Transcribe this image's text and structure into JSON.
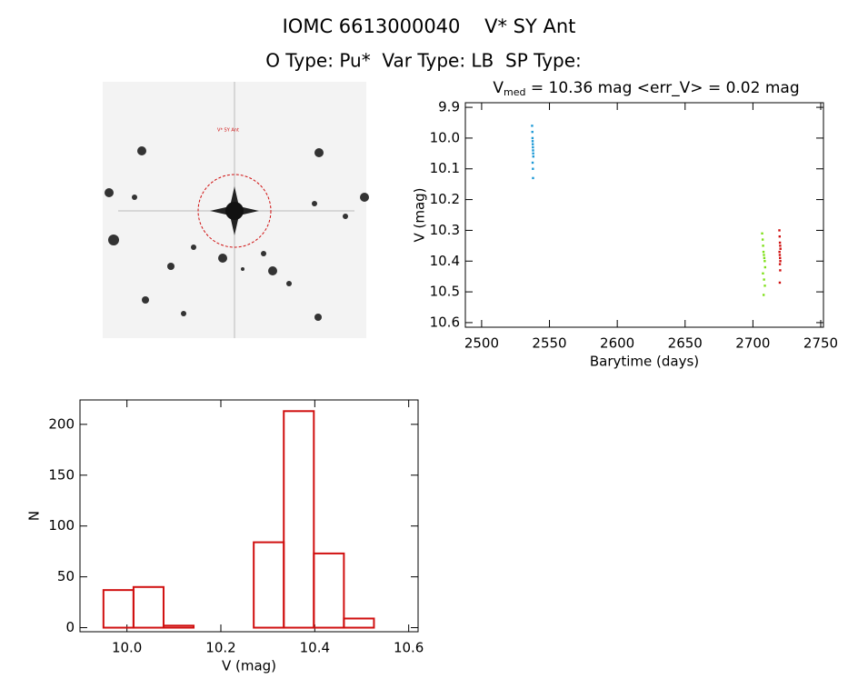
{
  "header": {
    "title": "IOMC 6613000040    V* SY Ant",
    "subtitle": "O Type: Pu*  Var Type: LB  SP Type:"
  },
  "finder": {
    "label": "V* SY Ant"
  },
  "chart_data": [
    {
      "type": "scatter",
      "title": [
        "V",
        "med",
        " = 10.36 mag <err_V> = 0.02 mag"
      ],
      "xlabel": "Barytime (days)",
      "ylabel": "V (mag)",
      "xlim": [
        2488,
        2752
      ],
      "xticks": [
        2500,
        2550,
        2600,
        2650,
        2700,
        2750
      ],
      "ylim": [
        10.615,
        9.885
      ],
      "yticks": [
        9.9,
        {
          "value": 10,
          "label": "10.0"
        },
        10.1,
        10.2,
        10.3,
        10.4,
        10.5,
        10.6
      ],
      "series": [
        {
          "color": "#1f9ad6",
          "x": [
            2537.2,
            2537.4,
            2537.5,
            2537.6,
            2537.7,
            2537.8,
            2537.9,
            2538.0,
            2538.1,
            2537.6,
            2537.8,
            2537.9
          ],
          "values": [
            9.96,
            9.98,
            10.0,
            10.01,
            10.02,
            10.03,
            10.04,
            10.05,
            10.06,
            10.08,
            10.1,
            10.13
          ]
        },
        {
          "color": "#7fe01a",
          "x": [
            2706.8,
            2707.2,
            2707.5,
            2707.8,
            2708.1,
            2708.4,
            2708.7,
            2709.0,
            2707.4,
            2708.2,
            2708.8,
            2707.9
          ],
          "values": [
            10.31,
            10.33,
            10.35,
            10.37,
            10.38,
            10.39,
            10.4,
            10.42,
            10.44,
            10.46,
            10.48,
            10.51
          ]
        },
        {
          "color": "#d01010",
          "x": [
            2719.5,
            2719.7,
            2719.9,
            2720.1,
            2720.3,
            2719.6,
            2719.8,
            2720.0,
            2720.2,
            2719.9,
            2720.1,
            2719.8
          ],
          "values": [
            10.3,
            10.32,
            10.34,
            10.35,
            10.36,
            10.37,
            10.38,
            10.39,
            10.4,
            10.41,
            10.43,
            10.47
          ]
        }
      ]
    },
    {
      "type": "histogram",
      "color": "#d01010",
      "xlabel": "V (mag)",
      "ylabel": "N",
      "bins": [
        9.95,
        10.014,
        10.078,
        10.142,
        10.206,
        10.27,
        10.334,
        10.398,
        10.462,
        10.526
      ],
      "values": [
        37,
        40,
        2,
        0,
        0,
        84,
        213,
        73,
        9
      ],
      "xlim": [
        9.9,
        10.62
      ],
      "xticks": [
        {
          "value": 10,
          "label": "10.0"
        },
        10.2,
        10.4,
        10.6
      ],
      "ylim": [
        -4,
        224
      ],
      "yticks": [
        0,
        50,
        100,
        150,
        200
      ]
    }
  ]
}
